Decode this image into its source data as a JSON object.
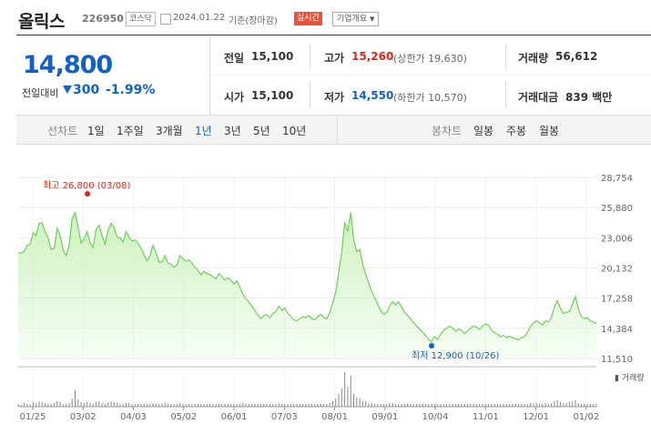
{
  "header": {
    "name": "올릭스",
    "code": "226950",
    "market": "코스닥",
    "date": "2024.01.22",
    "basis": "기준(장마감)",
    "realtime": "실시간",
    "overview": "기업개요"
  },
  "quote": {
    "price": "14,800",
    "change_label": "전일대비",
    "change": "300",
    "change_pct": "-1.99%",
    "prev_label": "전일",
    "prev": "15,100",
    "open_label": "시가",
    "open": "15,100",
    "high_label": "고가",
    "high": "15,260",
    "upper_limit": "(상한가 19,630)",
    "low_label": "저가",
    "low": "14,550",
    "lower_limit": "(하한가 10,570)",
    "volume_label": "거래량",
    "volume": "56,612",
    "amount_label": "거래대금",
    "amount": "839 백만"
  },
  "toolbar": {
    "line_label": "선차트",
    "ranges": [
      "1일",
      "1주일",
      "3개월",
      "1년",
      "3년",
      "5년",
      "10년"
    ],
    "selected_range": "1년",
    "candle_label": "봉차트",
    "candles": [
      "일봉",
      "주봉",
      "월봉"
    ]
  },
  "colors": {
    "up": "#e0261b",
    "down": "#1261c4",
    "line": "#6fcf5a",
    "fill": "#cdf2bf"
  },
  "chart_data": {
    "type": "area",
    "y_ticks": [
      "28,754",
      "25,880",
      "23,006",
      "20,132",
      "17,258",
      "14,384",
      "11,510"
    ],
    "ylim": [
      11510,
      28754
    ],
    "x_ticks": [
      "01/25",
      "03/02",
      "04/03",
      "05/02",
      "06/01",
      "07/03",
      "08/01",
      "09/01",
      "10/04",
      "11/01",
      "12/01",
      "01/02"
    ],
    "max_annotation": "최고 26,800 (03/08)",
    "min_annotation": "최저 12,900 (10/26)",
    "volume_label": "거래량",
    "grid": true,
    "series": [
      {
        "values": [
          21600,
          21550,
          21700,
          22300,
          22400,
          23500,
          23200,
          24400,
          24400,
          23600,
          23000,
          21900,
          22000,
          23900,
          23200,
          21800,
          21300,
          22300,
          24800,
          25400,
          24000,
          22500,
          22900,
          23600,
          22500,
          22100,
          23800,
          24200,
          23200,
          22400,
          23700,
          24400,
          24000,
          23100,
          23000,
          22600,
          23600,
          23100,
          22700,
          22800,
          22500,
          22000,
          21400,
          20800,
          21300,
          22300,
          21600,
          20700,
          20700,
          21300,
          20600,
          20500,
          20200,
          20400,
          21300,
          21000,
          20800,
          20900,
          20600,
          20200,
          19900,
          19500,
          19800,
          19600,
          19500,
          19300,
          19100,
          19600,
          19300,
          19000,
          19200,
          19000,
          18600,
          18900,
          18300,
          17600,
          17200,
          16900,
          16500,
          16100,
          15600,
          15300,
          15600,
          15700,
          15400,
          15800,
          16000,
          16500,
          16100,
          16300,
          15800,
          15500,
          15200,
          15100,
          15300,
          15500,
          15400,
          15600,
          15300,
          15200,
          15500,
          15700,
          15400,
          15300,
          15900,
          16800,
          17900,
          19700,
          21600,
          24500,
          23600,
          25400,
          22800,
          21700,
          21900,
          20500,
          19500,
          18700,
          17900,
          17300,
          16700,
          16100,
          15700,
          15900,
          16500,
          16900,
          16600,
          16900,
          16400,
          15900,
          15600,
          15300,
          14900,
          14600,
          14300,
          14000,
          13700,
          13300,
          13100,
          13600,
          13300,
          13800,
          14200,
          14400,
          14600,
          14400,
          14100,
          14300,
          14200,
          13900,
          14100,
          14400,
          14600,
          14500,
          14300,
          14600,
          14800,
          14700,
          14200,
          14000,
          13800,
          13600,
          13700,
          13500,
          13600,
          13500,
          13400,
          13300,
          13500,
          13600,
          14000,
          14600,
          14900,
          15100,
          14900,
          14700,
          15100,
          15000,
          15400,
          16400,
          17000,
          16300,
          15800,
          15900,
          16000,
          16700,
          17400,
          16200,
          15500,
          15300,
          15400,
          15100,
          15000,
          14800
        ]
      }
    ],
    "volume_values": [
      3,
      2,
      4,
      3,
      3,
      5,
      4,
      6,
      5,
      4,
      3,
      3,
      4,
      6,
      5,
      3,
      3,
      4,
      9,
      18,
      8,
      5,
      4,
      5,
      4,
      3,
      5,
      6,
      4,
      3,
      5,
      6,
      5,
      4,
      3,
      3,
      4,
      4,
      3,
      3,
      3,
      3,
      3,
      3,
      3,
      4,
      3,
      3,
      3,
      4,
      3,
      3,
      3,
      3,
      4,
      3,
      3,
      3,
      3,
      3,
      3,
      3,
      3,
      3,
      3,
      3,
      3,
      3,
      3,
      3,
      3,
      3,
      3,
      3,
      3,
      4,
      3,
      3,
      3,
      3,
      3,
      3,
      3,
      3,
      3,
      3,
      3,
      4,
      3,
      3,
      3,
      3,
      3,
      3,
      3,
      3,
      3,
      3,
      3,
      3,
      3,
      3,
      3,
      3,
      4,
      6,
      9,
      14,
      20,
      38,
      22,
      34,
      14,
      10,
      9,
      6,
      6,
      4,
      4,
      3,
      3,
      3,
      3,
      3,
      4,
      4,
      3,
      3,
      3,
      3,
      3,
      3,
      3,
      3,
      3,
      3,
      3,
      3,
      3,
      3,
      3,
      3,
      3,
      3,
      3,
      3,
      3,
      3,
      3,
      3,
      3,
      3,
      3,
      3,
      3,
      3,
      3,
      3,
      3,
      3,
      3,
      3,
      3,
      3,
      3,
      3,
      3,
      3,
      3,
      3,
      3,
      4,
      4,
      4,
      3,
      3,
      4,
      3,
      4,
      6,
      7,
      5,
      4,
      4,
      5,
      6,
      7,
      4,
      3,
      3,
      3,
      3,
      3,
      3
    ]
  }
}
